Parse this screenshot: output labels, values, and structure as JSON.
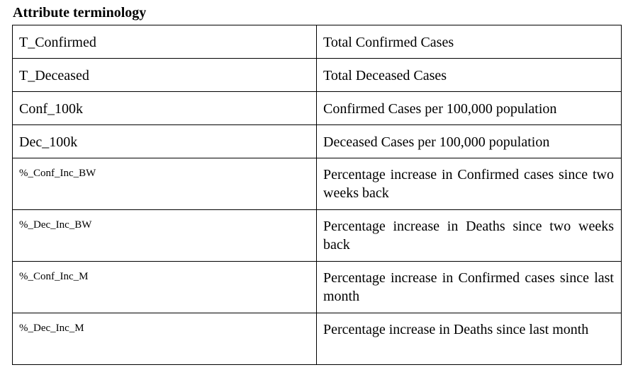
{
  "title": "Attribute terminology",
  "rows": [
    {
      "attribute": "T_Confirmed",
      "description": "Total Confirmed Cases"
    },
    {
      "attribute": "T_Deceased",
      "description": "Total Deceased Cases"
    },
    {
      "attribute": "Conf_100k",
      "description": "Confirmed Cases per 100,000 population"
    },
    {
      "attribute": "Dec_100k",
      "description": "Deceased Cases per 100,000 population"
    },
    {
      "attribute": "%_Conf_Inc_BW",
      "description": "Percentage increase in Confirmed cases since two weeks back"
    },
    {
      "attribute": "%_Dec_Inc_BW",
      "description": "Percentage increase in Deaths since two weeks back"
    },
    {
      "attribute": "%_Conf_Inc_M",
      "description": "Percentage increase in Confirmed cases since last month"
    },
    {
      "attribute": "%_Dec_Inc_M",
      "description": "Percentage increase in Deaths since last month"
    }
  ]
}
